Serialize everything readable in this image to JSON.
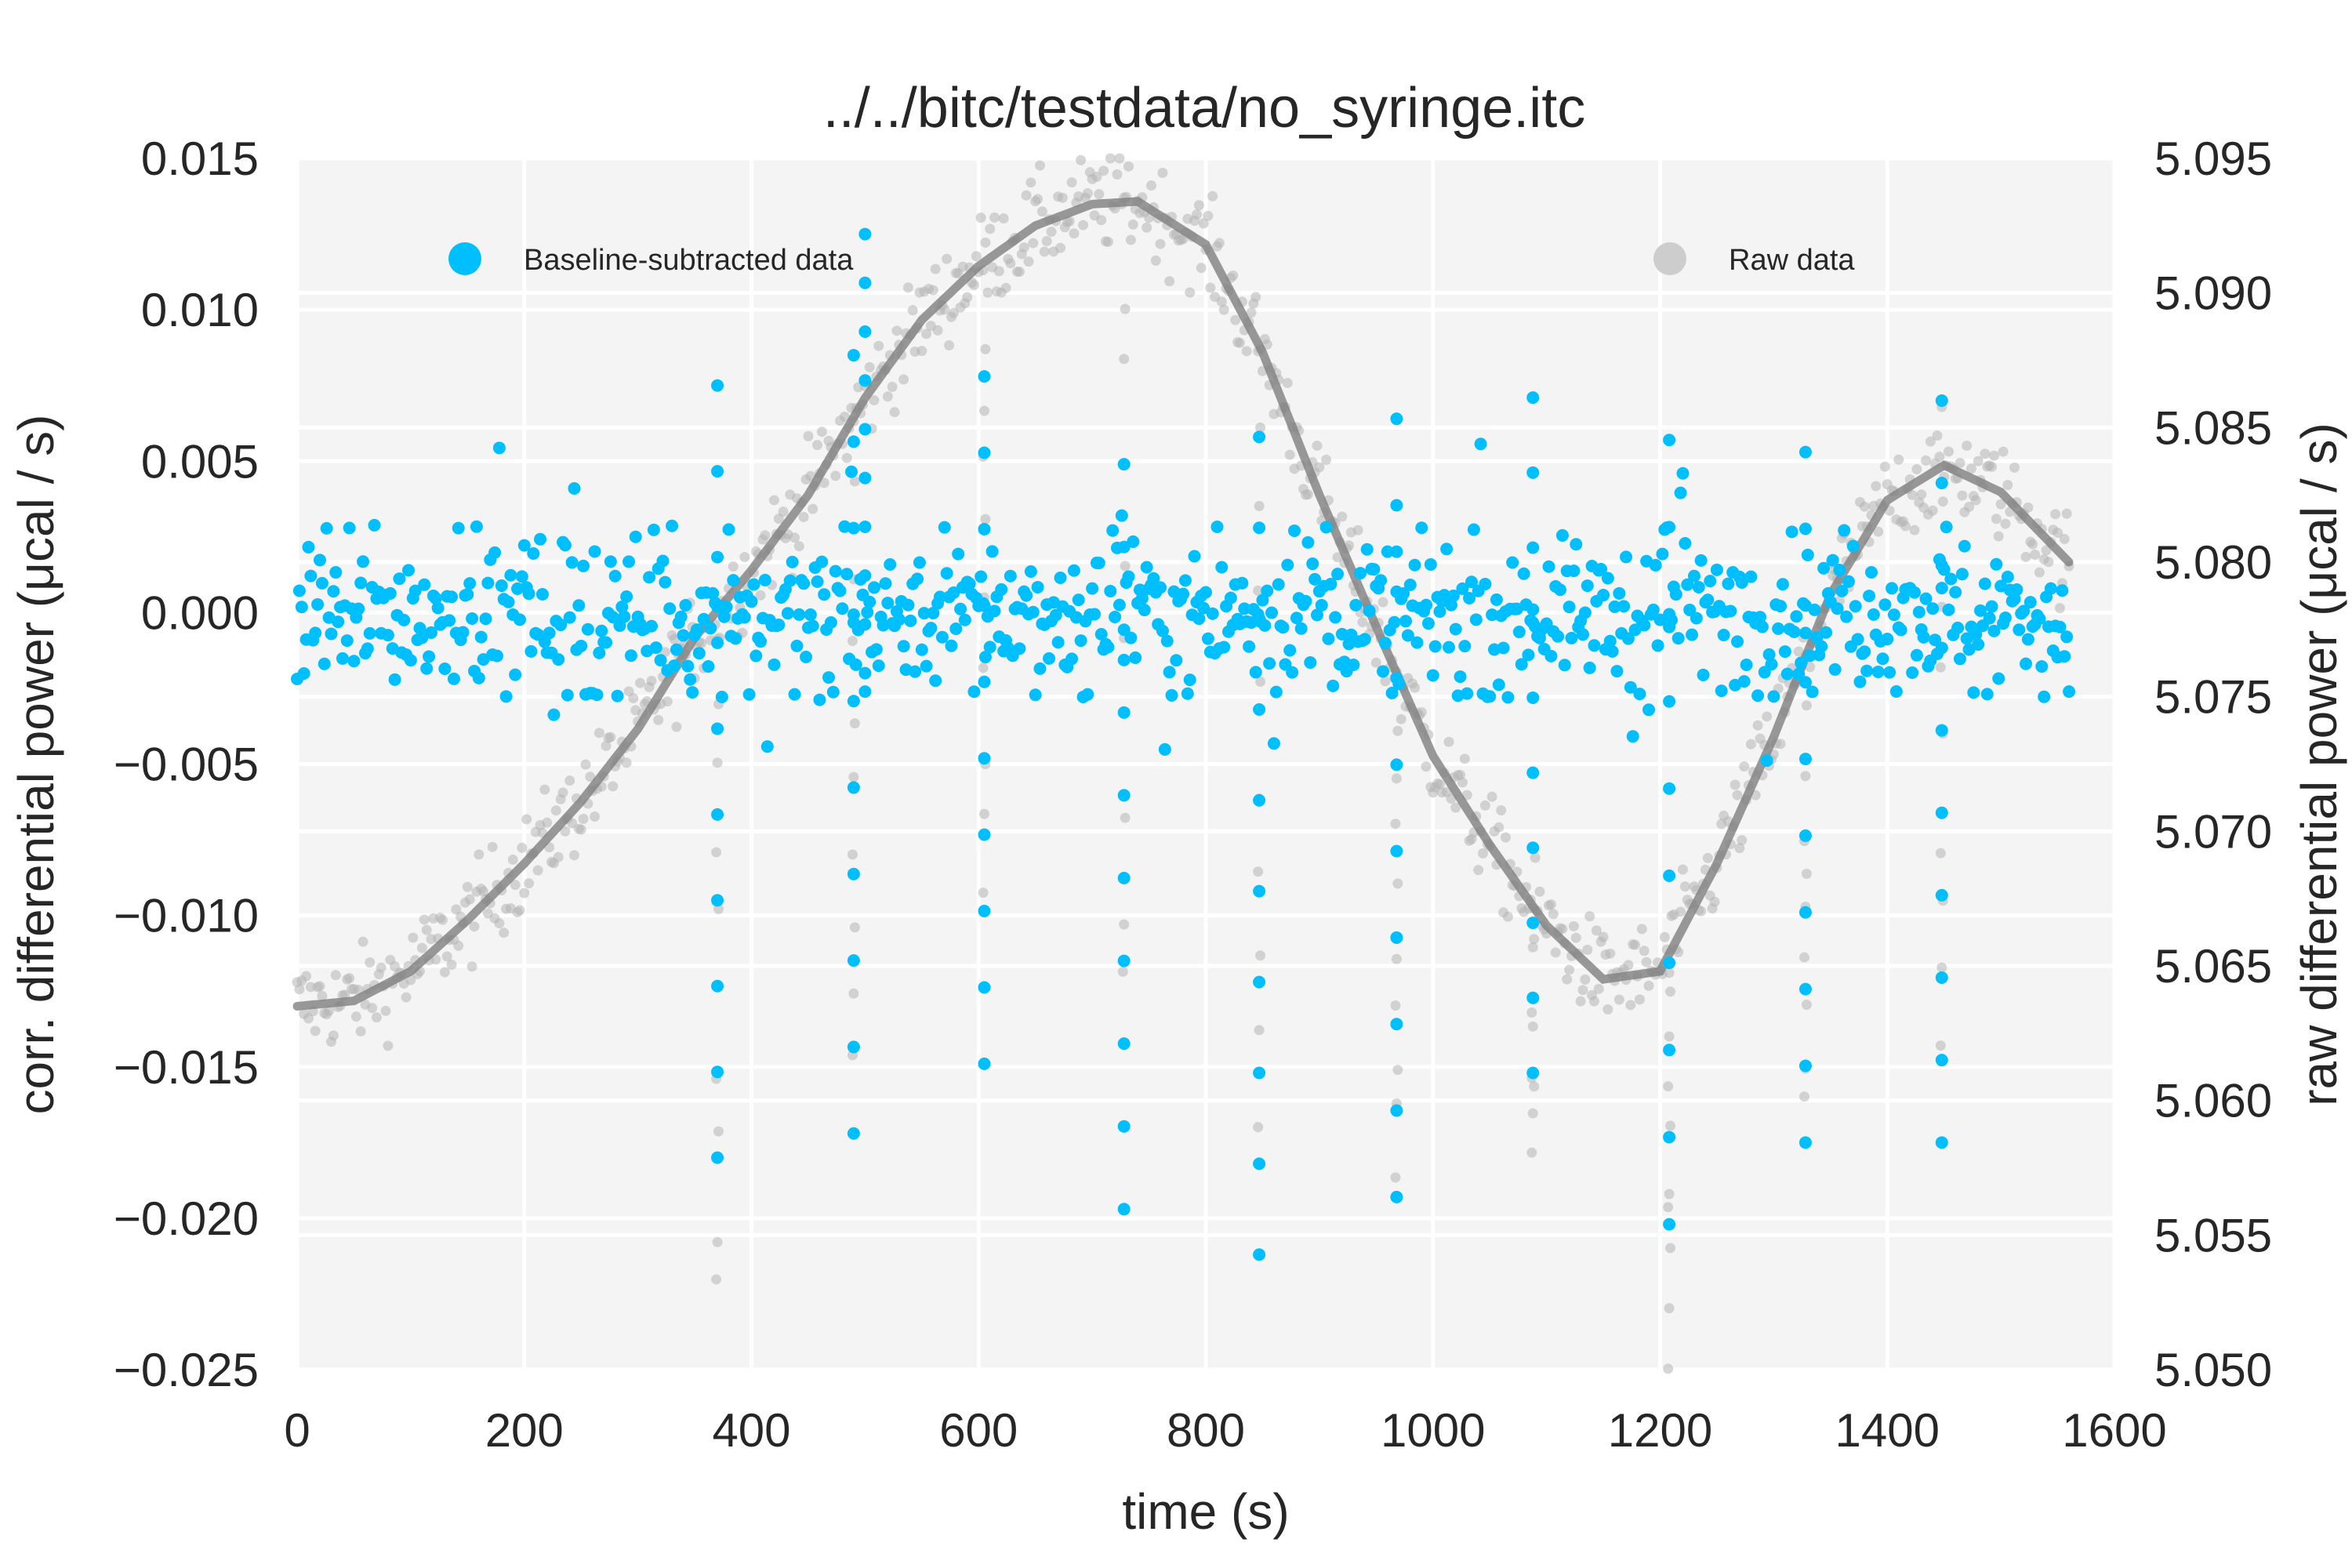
{
  "chart_data": {
    "type": "scatter",
    "title": "../../bitc/testdata/no_syringe.itc",
    "xlabel": "time (s)",
    "ylabel": "corr. differential power (μcal / s)",
    "y2label": "raw differential power (μcal / s)",
    "xlim": [
      0,
      1600
    ],
    "ylim": [
      -0.025,
      0.015
    ],
    "y2lim": [
      5.05,
      5.095
    ],
    "xticks": [
      "0",
      "200",
      "400",
      "600",
      "800",
      "1000",
      "1200",
      "1400",
      "1600"
    ],
    "yticks": [
      "0.015",
      "0.010",
      "0.005",
      "0.000",
      "−0.005",
      "−0.010",
      "−0.015",
      "−0.020",
      "−0.025"
    ],
    "y2ticks": [
      "5.095",
      "5.090",
      "5.085",
      "5.080",
      "5.075",
      "5.070",
      "5.065",
      "5.060",
      "5.055",
      "5.050"
    ],
    "grid": true,
    "legend": [
      {
        "name": "Baseline-subtracted data",
        "color": "#00bfff",
        "placement": "top-left"
      },
      {
        "name": "Raw data",
        "color": "#c8c8c8",
        "placement": "top-right"
      }
    ],
    "series": [
      {
        "name": "Baseline-subtracted data",
        "axis": "left",
        "color": "#00bfff",
        "sample_interval_s": 2,
        "x_range": [
          0,
          1560
        ],
        "noise_band": [
          -0.0027,
          0.0028
        ],
        "outlier_band": [
          -0.0055,
          0.0062
        ],
        "injection_spikes": [
          {
            "x": 370,
            "min": -0.018,
            "max": 0.0075
          },
          {
            "x": 490,
            "min": -0.0172,
            "max": 0.0085
          },
          {
            "x": 500,
            "min": -0.002,
            "max": 0.0125
          },
          {
            "x": 605,
            "min": -0.0149,
            "max": 0.0078
          },
          {
            "x": 728,
            "min": -0.0197,
            "max": 0.0049
          },
          {
            "x": 847,
            "min": -0.0212,
            "max": 0.0058
          },
          {
            "x": 968,
            "min": -0.0193,
            "max": 0.0064
          },
          {
            "x": 1088,
            "min": -0.0152,
            "max": 0.0071
          },
          {
            "x": 1208,
            "min": -0.0202,
            "max": 0.0057
          },
          {
            "x": 1328,
            "min": -0.0175,
            "max": 0.0053
          },
          {
            "x": 1448,
            "min": -0.0175,
            "max": 0.007
          }
        ]
      },
      {
        "name": "Raw data",
        "axis": "right",
        "color": "#b4b4b4",
        "sample_interval_s": 2,
        "x_range": [
          0,
          1560
        ],
        "noise_amplitude": 0.0016,
        "injection_spikes": [
          {
            "x": 370,
            "min": 5.0525
          },
          {
            "x": 490,
            "min": 5.0615
          },
          {
            "x": 605,
            "min": 5.068
          },
          {
            "x": 728,
            "min": 5.064
          },
          {
            "x": 847,
            "min": 5.059
          },
          {
            "x": 968,
            "min": 5.0575
          },
          {
            "x": 1088,
            "min": 5.0585
          },
          {
            "x": 1208,
            "min": 5.0505
          },
          {
            "x": 1328,
            "min": 5.0595
          },
          {
            "x": 1448,
            "min": 5.0615
          }
        ]
      },
      {
        "name": "baseline",
        "axis": "right",
        "type": "line",
        "color": "#7f7f7f",
        "x": [
          0,
          50,
          100,
          150,
          200,
          250,
          300,
          350,
          400,
          450,
          500,
          550,
          600,
          650,
          700,
          740,
          800,
          850,
          900,
          950,
          1000,
          1050,
          1100,
          1150,
          1200,
          1250,
          1300,
          1350,
          1400,
          1450,
          1500,
          1560
        ],
        "y": [
          5.0635,
          5.0637,
          5.0648,
          5.0667,
          5.0688,
          5.0711,
          5.0738,
          5.0772,
          5.0797,
          5.0825,
          5.0861,
          5.089,
          5.091,
          5.0925,
          5.0933,
          5.0934,
          5.0918,
          5.0878,
          5.0825,
          5.0776,
          5.0728,
          5.0695,
          5.0665,
          5.0645,
          5.0648,
          5.0688,
          5.0735,
          5.0788,
          5.0823,
          5.0836,
          5.0826,
          5.08
        ]
      }
    ]
  }
}
